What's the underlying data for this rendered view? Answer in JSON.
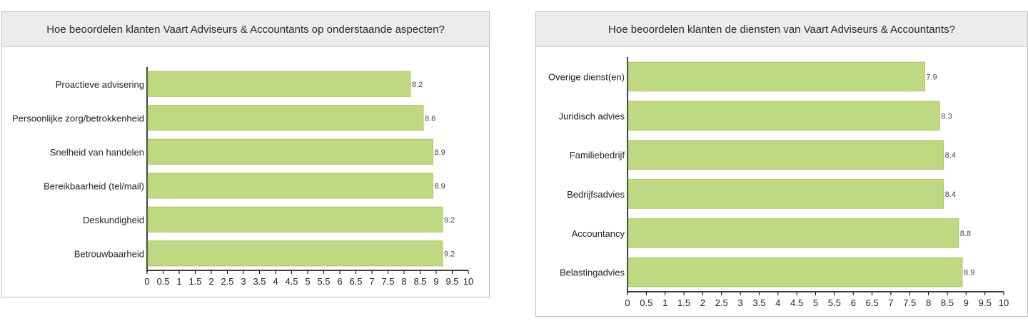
{
  "chart_data": [
    {
      "type": "bar",
      "orientation": "horizontal",
      "title": "Hoe beoordelen klanten Vaart Adviseurs & Accountants op onderstaande aspecten?",
      "categories": [
        "Proactieve advisering",
        "Persoonlijke zorg/betrokkenheid",
        "Snelheid van handelen",
        "Bereikbaarheid (tel/mail)",
        "Deskundigheid",
        "Betrouwbaarheid"
      ],
      "values": [
        8.2,
        8.6,
        8.9,
        8.9,
        9.2,
        9.2
      ],
      "value_labels": [
        "8.2",
        "8.6",
        "8.9",
        "8.9",
        "9.2",
        "9.2"
      ],
      "xlim": [
        0,
        10
      ],
      "ticks": [
        "0",
        "0.5",
        "1",
        "1.5",
        "2",
        "2.5",
        "3",
        "3.5",
        "4",
        "4.5",
        "5",
        "5.5",
        "6",
        "6.5",
        "7",
        "7.5",
        "8",
        "8.5",
        "9",
        "9.5",
        "10"
      ],
      "grid": false,
      "bar_color": "#bfd982",
      "bar_edge_color": "#a9c76a"
    },
    {
      "type": "bar",
      "orientation": "horizontal",
      "title": "Hoe beoordelen klanten de diensten van Vaart Adviseurs & Accountants?",
      "categories": [
        "Overige dienst(en)",
        "Juridisch advies",
        "Familiebedrijf",
        "Bedrijfsadvies",
        "Accountancy",
        "Belastingadvies"
      ],
      "values": [
        7.9,
        8.3,
        8.4,
        8.4,
        8.8,
        8.9
      ],
      "value_labels": [
        "7.9",
        "8.3",
        "8.4",
        "8.4",
        "8.8",
        "8.9"
      ],
      "xlim": [
        0,
        10
      ],
      "ticks": [
        "0",
        "0.5",
        "1",
        "1.5",
        "2",
        "2.5",
        "3",
        "3.5",
        "4",
        "4.5",
        "5",
        "5.5",
        "6",
        "6.5",
        "7",
        "7.5",
        "8",
        "8.5",
        "9",
        "9.5",
        "10"
      ],
      "grid": false,
      "bar_color": "#bfd982",
      "bar_edge_color": "#a9c76a"
    }
  ]
}
